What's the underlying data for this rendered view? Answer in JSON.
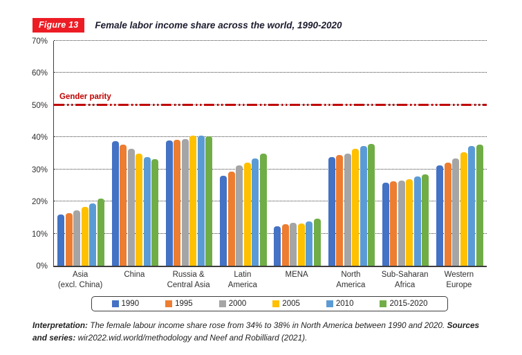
{
  "figure": {
    "badge": "Figure 13",
    "title": "Female labor income share across the world, 1990-2020"
  },
  "chart_data": {
    "type": "bar",
    "title": "Female labor income share across the world, 1990-2020",
    "categories": [
      "Asia (excl. China)",
      "China",
      "Russia & Central Asia",
      "Latin America",
      "MENA",
      "North America",
      "Sub-Saharan Africa",
      "Western Europe"
    ],
    "category_labels": [
      [
        "Asia",
        "(excl. China)"
      ],
      [
        "China"
      ],
      [
        "Russia &",
        "Central Asia"
      ],
      [
        "Latin",
        "America"
      ],
      [
        "MENA"
      ],
      [
        "North",
        "America"
      ],
      [
        "Sub-Saharan",
        "Africa"
      ],
      [
        "Western",
        "Europe"
      ]
    ],
    "series": [
      {
        "name": "1990",
        "color": "#4472C4",
        "values": [
          16.0,
          38.7,
          38.9,
          28.0,
          12.2,
          33.9,
          25.9,
          31.2
        ]
      },
      {
        "name": "1995",
        "color": "#ED7D31",
        "values": [
          16.4,
          37.8,
          39.1,
          29.2,
          13.0,
          34.4,
          26.2,
          32.0
        ]
      },
      {
        "name": "2000",
        "color": "#A5A5A5",
        "values": [
          17.3,
          36.4,
          39.5,
          31.2,
          13.4,
          35.0,
          26.4,
          33.3
        ]
      },
      {
        "name": "2005",
        "color": "#FFC000",
        "values": [
          18.3,
          34.9,
          40.5,
          32.2,
          13.2,
          36.4,
          27.0,
          35.4
        ]
      },
      {
        "name": "2010",
        "color": "#5B9BD5",
        "values": [
          19.4,
          33.8,
          40.6,
          33.4,
          13.7,
          37.3,
          27.7,
          37.3
        ]
      },
      {
        "name": "2015-2020",
        "color": "#70AD47",
        "values": [
          20.8,
          33.2,
          40.3,
          35.0,
          14.7,
          38.0,
          28.4,
          37.8
        ]
      }
    ],
    "ylabel": "",
    "xlabel": "",
    "ylim": [
      0,
      70
    ],
    "ytick_step": 10,
    "ytick_suffix": "%",
    "grid": "horizontal-dotted",
    "legend_position": "bottom",
    "reference_line": {
      "value": 50,
      "label": "Gender parity",
      "color": "#C00000",
      "style": "dash-dot-dot"
    }
  },
  "footer": {
    "interpretation_label": "Interpretation:",
    "interpretation_text": " The female labour income share rose from 34% to 38% in North America between 1990 and 2020. ",
    "sources_label": "Sources and series:",
    "sources_text": " wir2022.wid.world/methodology and Neef and Robilliard (2021)."
  },
  "colors": {
    "badge_background": "#ED1C24",
    "badge_text": "#FFFFFF",
    "parity_line": "#C00000",
    "axis": "#3D3D3D"
  }
}
